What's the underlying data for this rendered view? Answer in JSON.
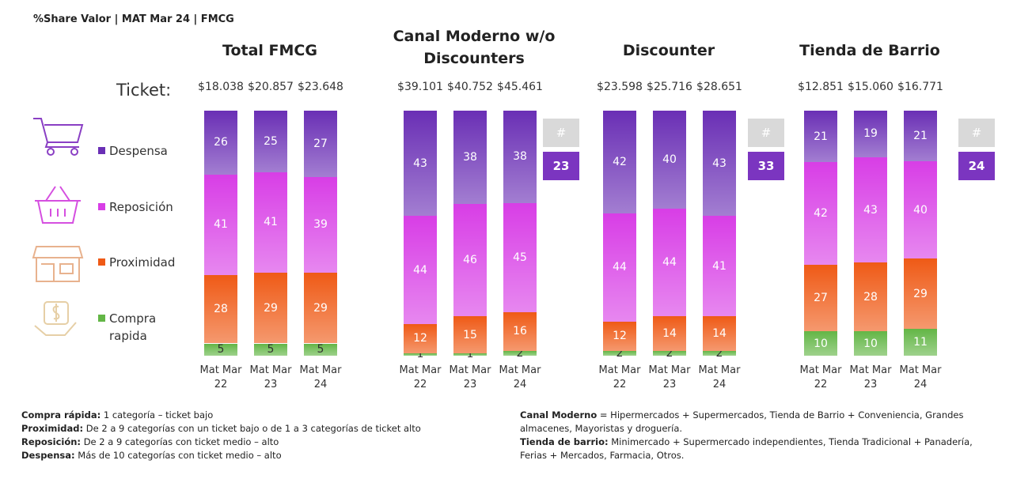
{
  "header": {
    "title": "%Share Valor |  MAT Mar 24 | FMCG",
    "ticket_label": "Ticket:"
  },
  "legend": {
    "names": [
      "Despensa",
      "Reposición",
      "Proximidad",
      "Compra rapida"
    ],
    "colors": [
      "#6a2fb5",
      "#d83ee6",
      "#ef5a16",
      "#63b646"
    ]
  },
  "chart_data": [
    {
      "type": "stacked_bar",
      "title": "Total FMCG",
      "categories": [
        "Mat Mar 22",
        "Mat Mar 23",
        "Mat Mar 24"
      ],
      "tickets": [
        "$18.038",
        "$20.857",
        "$23.648"
      ],
      "series": [
        {
          "color": "#63b646",
          "values": [
            5,
            5,
            5
          ]
        },
        {
          "color": "#ef5a16",
          "values": [
            28,
            29,
            29
          ]
        },
        {
          "color": "#d83ee6",
          "values": [
            41,
            41,
            39
          ]
        },
        {
          "color": "#6a2fb5",
          "values": [
            26,
            25,
            27
          ]
        }
      ]
    },
    {
      "type": "stacked_bar",
      "title": "Canal Moderno w/o Discounters",
      "categories": [
        "Mat Mar 22",
        "Mat Mar 23",
        "Mat Mar 24"
      ],
      "tickets": [
        "$39.101",
        "$40.752",
        "$45.461"
      ],
      "badge": {
        "header": "#",
        "value": 23
      },
      "series": [
        {
          "color": "#63b646",
          "values": [
            1,
            1,
            2
          ]
        },
        {
          "color": "#ef5a16",
          "values": [
            12,
            15,
            16
          ]
        },
        {
          "color": "#d83ee6",
          "values": [
            44,
            46,
            45
          ]
        },
        {
          "color": "#6a2fb5",
          "values": [
            43,
            38,
            38
          ]
        }
      ]
    },
    {
      "type": "stacked_bar",
      "title": "Discounter",
      "categories": [
        "Mat Mar 22",
        "Mat Mar 23",
        "Mat Mar 24"
      ],
      "tickets": [
        "$23.598",
        "$25.716",
        "$28.651"
      ],
      "badge": {
        "header": "#",
        "value": 33
      },
      "series": [
        {
          "color": "#63b646",
          "values": [
            2,
            2,
            2
          ]
        },
        {
          "color": "#ef5a16",
          "values": [
            12,
            14,
            14
          ]
        },
        {
          "color": "#d83ee6",
          "values": [
            44,
            44,
            41
          ]
        },
        {
          "color": "#6a2fb5",
          "values": [
            42,
            40,
            43
          ]
        }
      ]
    },
    {
      "type": "stacked_bar",
      "title": "Tienda de Barrio",
      "categories": [
        "Mat Mar 22",
        "Mat Mar 23",
        "Mat Mar 24"
      ],
      "tickets": [
        "$12.851",
        "$15.060",
        "$16.771"
      ],
      "badge": {
        "header": "#",
        "value": 24
      },
      "series": [
        {
          "color": "#63b646",
          "values": [
            10,
            10,
            11
          ]
        },
        {
          "color": "#ef5a16",
          "values": [
            27,
            28,
            29
          ]
        },
        {
          "color": "#d83ee6",
          "values": [
            42,
            43,
            40
          ]
        },
        {
          "color": "#6a2fb5",
          "values": [
            21,
            19,
            21
          ]
        }
      ]
    }
  ],
  "footnotes_left": [
    {
      "term": "Compra rápida:",
      "text": "1 categoría – ticket bajo"
    },
    {
      "term": "Proximidad:",
      "text": "De 2 a 9 categorías con un ticket bajo o de 1 a 3 categorías de ticket alto"
    },
    {
      "term": "Reposición:",
      "text": "De 2 a 9 categorías con ticket medio – alto"
    },
    {
      "term": "Despensa:",
      "text": "Más de 10 categorías con ticket medio – alto"
    }
  ],
  "footnotes_right": [
    {
      "term": "Canal Moderno",
      "text": "= Hipermercados + Supermercados, Tienda de Barrio + Conveniencia, Grandes almacenes, Mayoristas y droguería."
    },
    {
      "term": "Tienda de barrio:",
      "text": "Minimercado + Supermercado independientes, Tienda Tradicional + Panadería, Ferias + Mercados, Farmacia, Otros."
    }
  ]
}
